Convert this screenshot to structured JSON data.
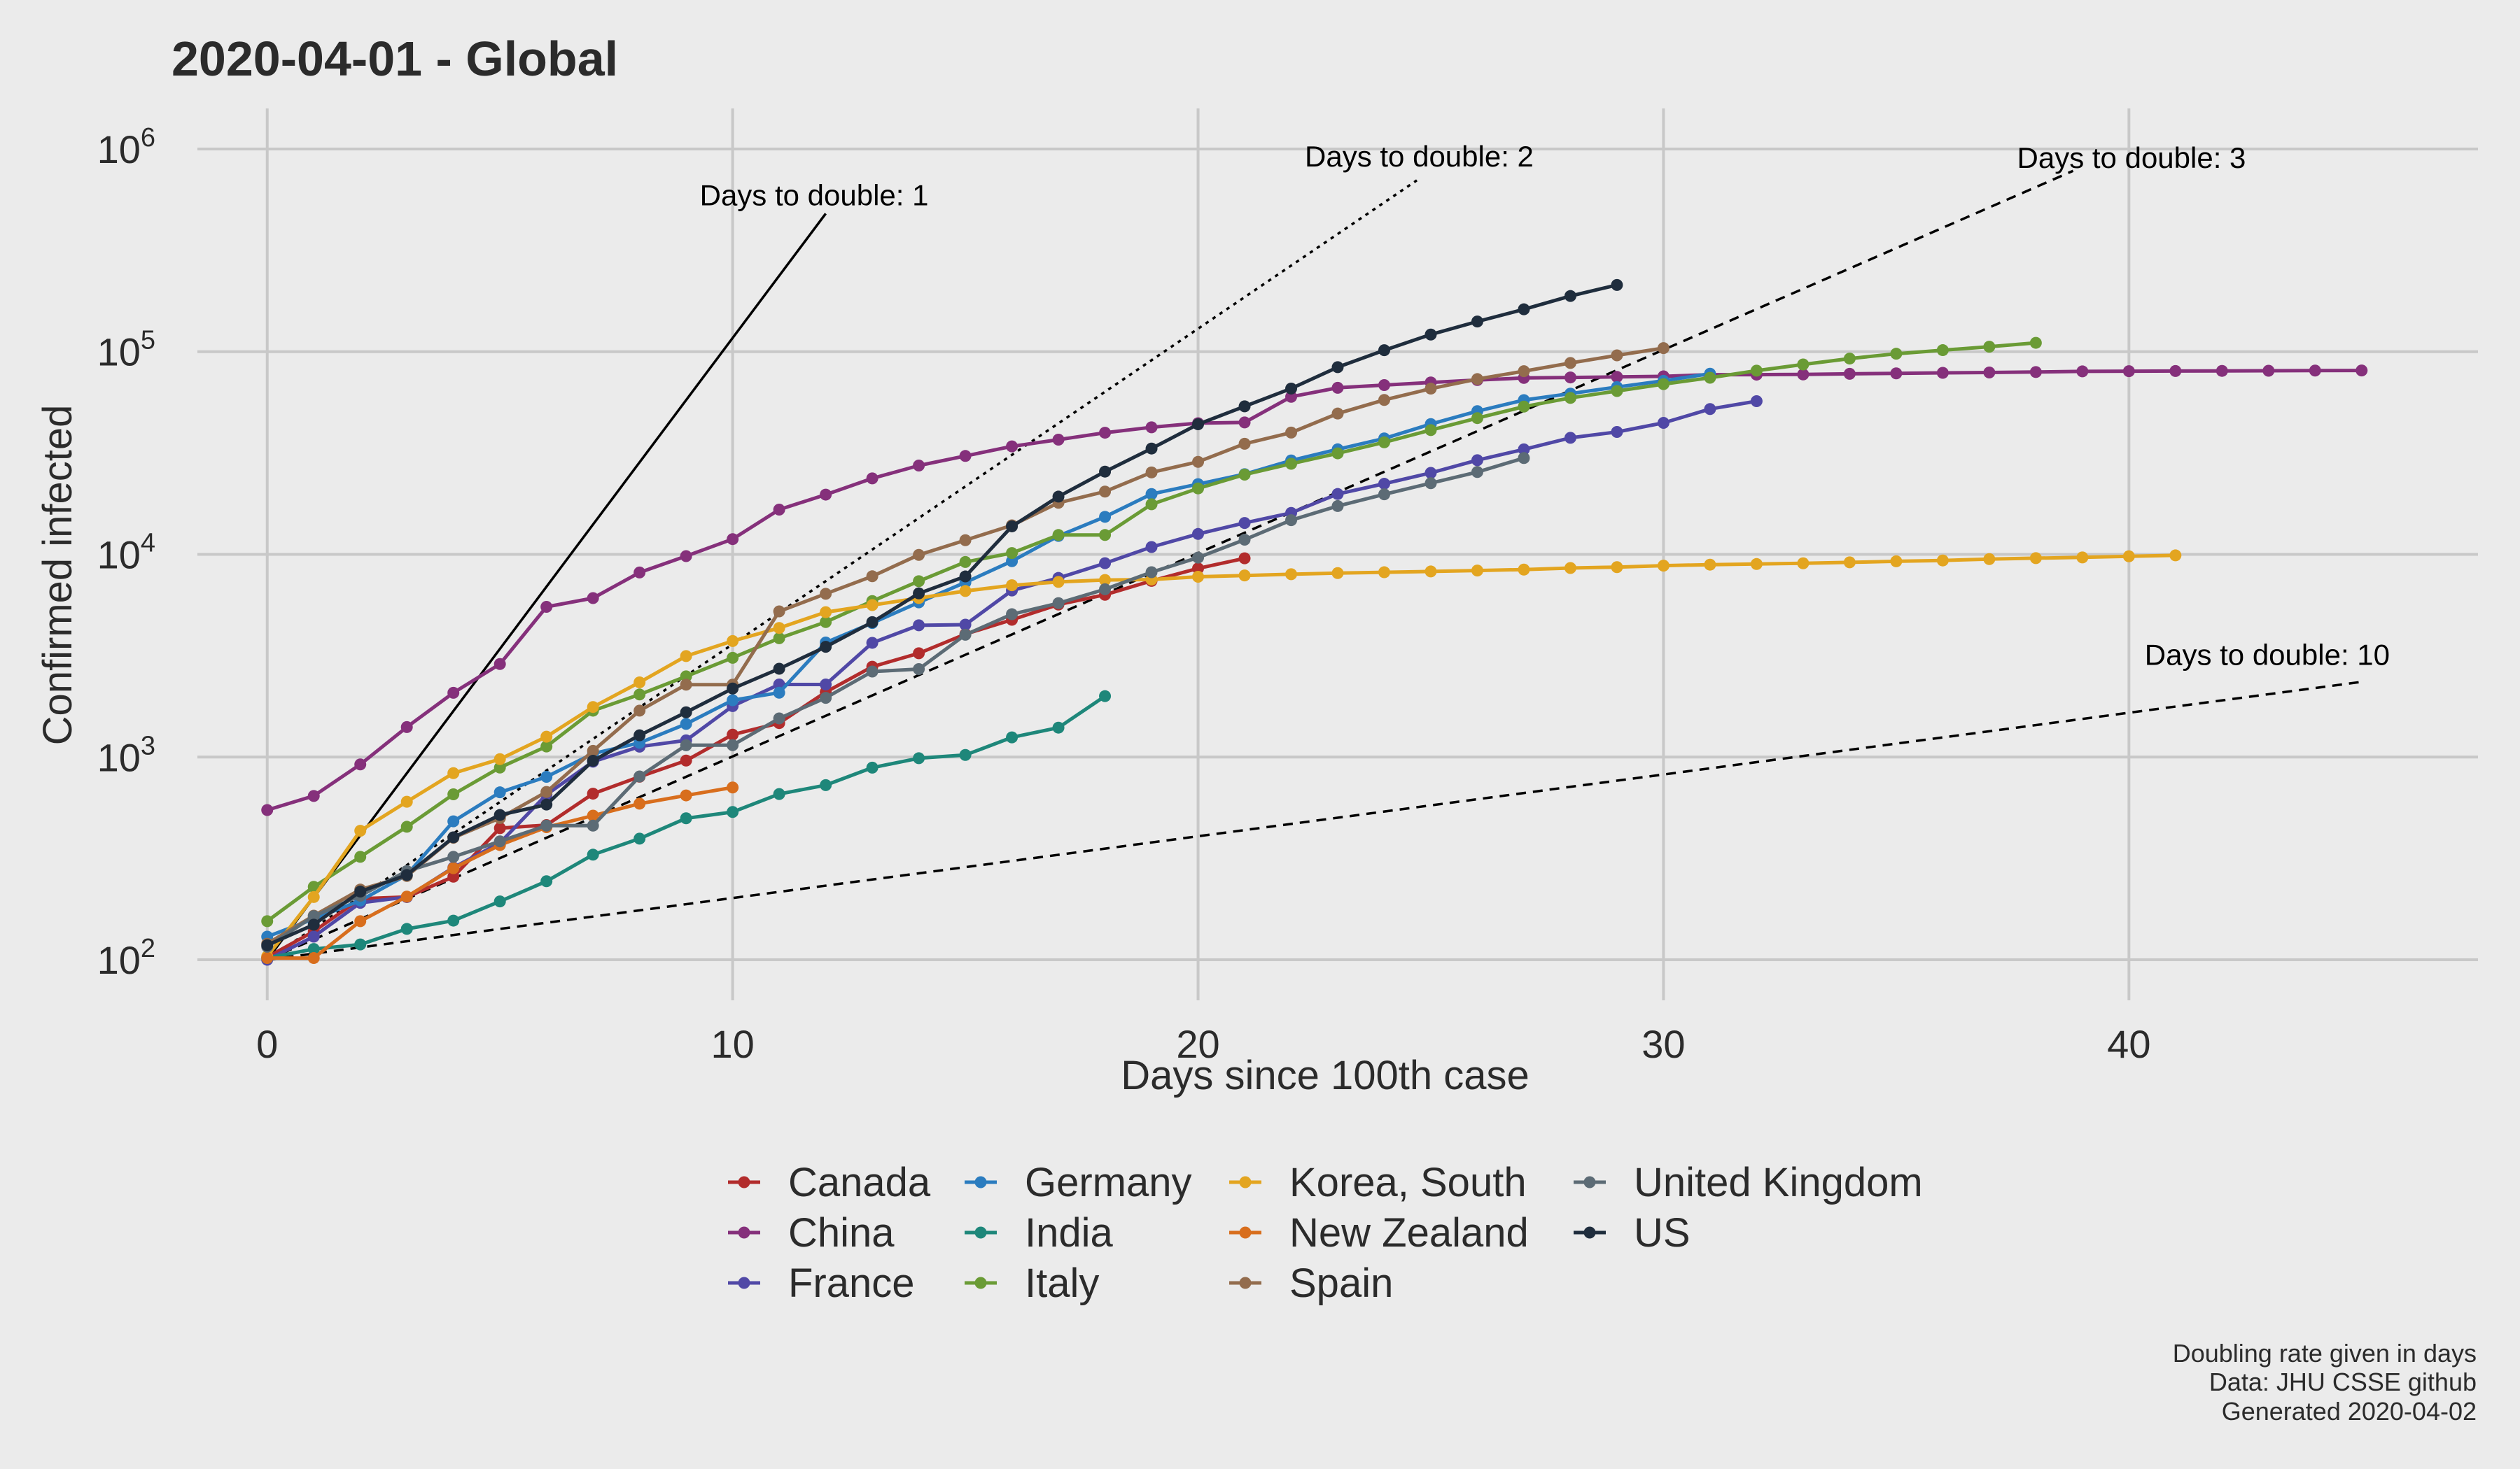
{
  "chart_data": {
    "type": "line",
    "title": "2020-04-01  - Global",
    "xlabel": "Days since 100th case",
    "ylabel": "Confirmed infected",
    "xlim": [
      -1.5,
      47.5
    ],
    "ylim_log10": [
      1.8,
      6.2
    ],
    "y_scale": "log10",
    "x_ticks": [
      0,
      10,
      20,
      30,
      40
    ],
    "y_ticks": [
      {
        "value": 100,
        "base": "10",
        "exp": "2"
      },
      {
        "value": 1000,
        "base": "10",
        "exp": "3"
      },
      {
        "value": 10000,
        "base": "10",
        "exp": "4"
      },
      {
        "value": 100000,
        "base": "10",
        "exp": "5"
      },
      {
        "value": 1000000,
        "base": "10",
        "exp": "6"
      }
    ],
    "grid": true,
    "legend_position": "bottom",
    "reference_lines": [
      {
        "label": "Days to double: 1",
        "x_end": 12,
        "y_end": 480000,
        "dash": "solid"
      },
      {
        "label": "Days to double: 2",
        "x_end": 24.7,
        "y_end": 700000,
        "dash": "dotted"
      },
      {
        "label": "Days to double: 3",
        "x_end": 38.8,
        "y_end": 780000,
        "dash": "dashed"
      },
      {
        "label": "Days to double: 10",
        "x_end": 45,
        "y_end": 2350,
        "dash": "dashed"
      }
    ],
    "series": [
      {
        "name": "Canada",
        "color": "#b22c2c",
        "values": [
          103,
          138,
          200,
          204,
          257,
          446,
          462,
          660,
          800,
          961,
          1290,
          1471,
          2091,
          2790,
          3251,
          4043,
          4757,
          5655,
          6320,
          7398,
          8527,
          9560
        ]
      },
      {
        "name": "China",
        "color": "#85307b",
        "values": [
          548,
          643,
          920,
          1406,
          2075,
          2877,
          5509,
          6087,
          8141,
          9802,
          11891,
          16630,
          19716,
          23707,
          27440,
          30587,
          34110,
          36814,
          39829,
          42354,
          44386,
          44759,
          59895,
          66358,
          68413,
          70513,
          72434,
          74211,
          74619,
          75077,
          75550,
          77001,
          77022,
          77241,
          77754,
          78166,
          78600,
          78928,
          79356,
          79932,
          80136,
          80261,
          80386,
          80537,
          80690,
          80770
        ]
      },
      {
        "name": "France",
        "color": "#5048a6",
        "values": [
          100,
          130,
          191,
          204,
          285,
          377,
          653,
          949,
          1126,
          1209,
          1784,
          2281,
          2281,
          3661,
          4469,
          4499,
          6633,
          7652,
          9043,
          10871,
          12612,
          14282,
          16018,
          19856,
          22304,
          25233,
          29155,
          32964,
          37575,
          40174,
          44550,
          52128,
          56989
        ]
      },
      {
        "name": "Germany",
        "color": "#2b7cbf",
        "values": [
          130,
          159,
          196,
          262,
          482,
          670,
          799,
          1040,
          1176,
          1457,
          1908,
          2078,
          3675,
          4585,
          5795,
          7272,
          9257,
          12327,
          15320,
          19848,
          22213,
          24873,
          29056,
          32986,
          37323,
          43938,
          50871,
          57695,
          62095,
          66885,
          71808,
          77872
        ]
      },
      {
        "name": "India",
        "color": "#1e877a",
        "values": [
          102,
          113,
          119,
          142,
          156,
          194,
          244,
          330,
          396,
          499,
          536,
          657,
          727,
          887,
          987,
          1024,
          1251,
          1397,
          1998
        ]
      },
      {
        "name": "Italy",
        "color": "#6a9b35",
        "values": [
          155,
          229,
          322,
          453,
          655,
          888,
          1128,
          1694,
          2036,
          2502,
          3089,
          3858,
          4636,
          5883,
          7375,
          9172,
          10149,
          12462,
          12462,
          17660,
          21157,
          24747,
          27980,
          31506,
          35713,
          41035,
          47021,
          53578,
          59138,
          63927,
          69176,
          74386,
          80589,
          86498,
          92472,
          97689,
          101739,
          105792,
          110574
        ]
      },
      {
        "name": "Korea, South",
        "color": "#e3a520",
        "values": [
          104,
          204,
          433,
          602,
          833,
          977,
          1261,
          1766,
          2337,
          3150,
          3736,
          4335,
          5186,
          5621,
          6088,
          6593,
          7041,
          7314,
          7478,
          7513,
          7755,
          7869,
          7979,
          8086,
          8162,
          8236,
          8320,
          8413,
          8565,
          8652,
          8799,
          8897,
          8961,
          9037,
          9137,
          9241,
          9332,
          9478,
          9583,
          9661,
          9786,
          9887
        ]
      },
      {
        "name": "New Zealand",
        "color": "#d86e1d",
        "values": [
          102,
          102,
          155,
          205,
          283,
          368,
          451,
          514,
          589,
          647,
          708
        ]
      },
      {
        "name": "Spain",
        "color": "#936c4d",
        "values": [
          120,
          165,
          222,
          259,
          400,
          500,
          673,
          1073,
          1695,
          2277,
          2277,
          5232,
          6391,
          7798,
          9942,
          11748,
          13910,
          17963,
          20410,
          25374,
          28603,
          35136,
          39885,
          49515,
          57786,
          65719,
          73235,
          80110,
          87956,
          95923,
          104118
        ]
      },
      {
        "name": "United Kingdom",
        "color": "#5c6b75",
        "values": [
          116,
          164,
          207,
          274,
          322,
          384,
          459,
          459,
          802,
          1144,
          1145,
          1551,
          1960,
          2642,
          2716,
          4014,
          5067,
          5745,
          6726,
          8164,
          9640,
          11812,
          14745,
          17312,
          19780,
          22453,
          25481,
          29865
        ]
      },
      {
        "name": "US",
        "color": "#1f2d3d",
        "values": [
          118,
          149,
          217,
          262,
          402,
          518,
          583,
          959,
          1281,
          1663,
          2179,
          2727,
          3499,
          4632,
          6421,
          7783,
          13747,
          19273,
          25600,
          33276,
          43847,
          53740,
          65778,
          83836,
          101657,
          121478,
          140886,
          161807,
          188172,
          213372
        ]
      }
    ]
  },
  "caption": {
    "line1": "Doubling rate given in days",
    "line2": "Data: JHU CSSE github",
    "line3": "Generated 2020-04-02"
  }
}
